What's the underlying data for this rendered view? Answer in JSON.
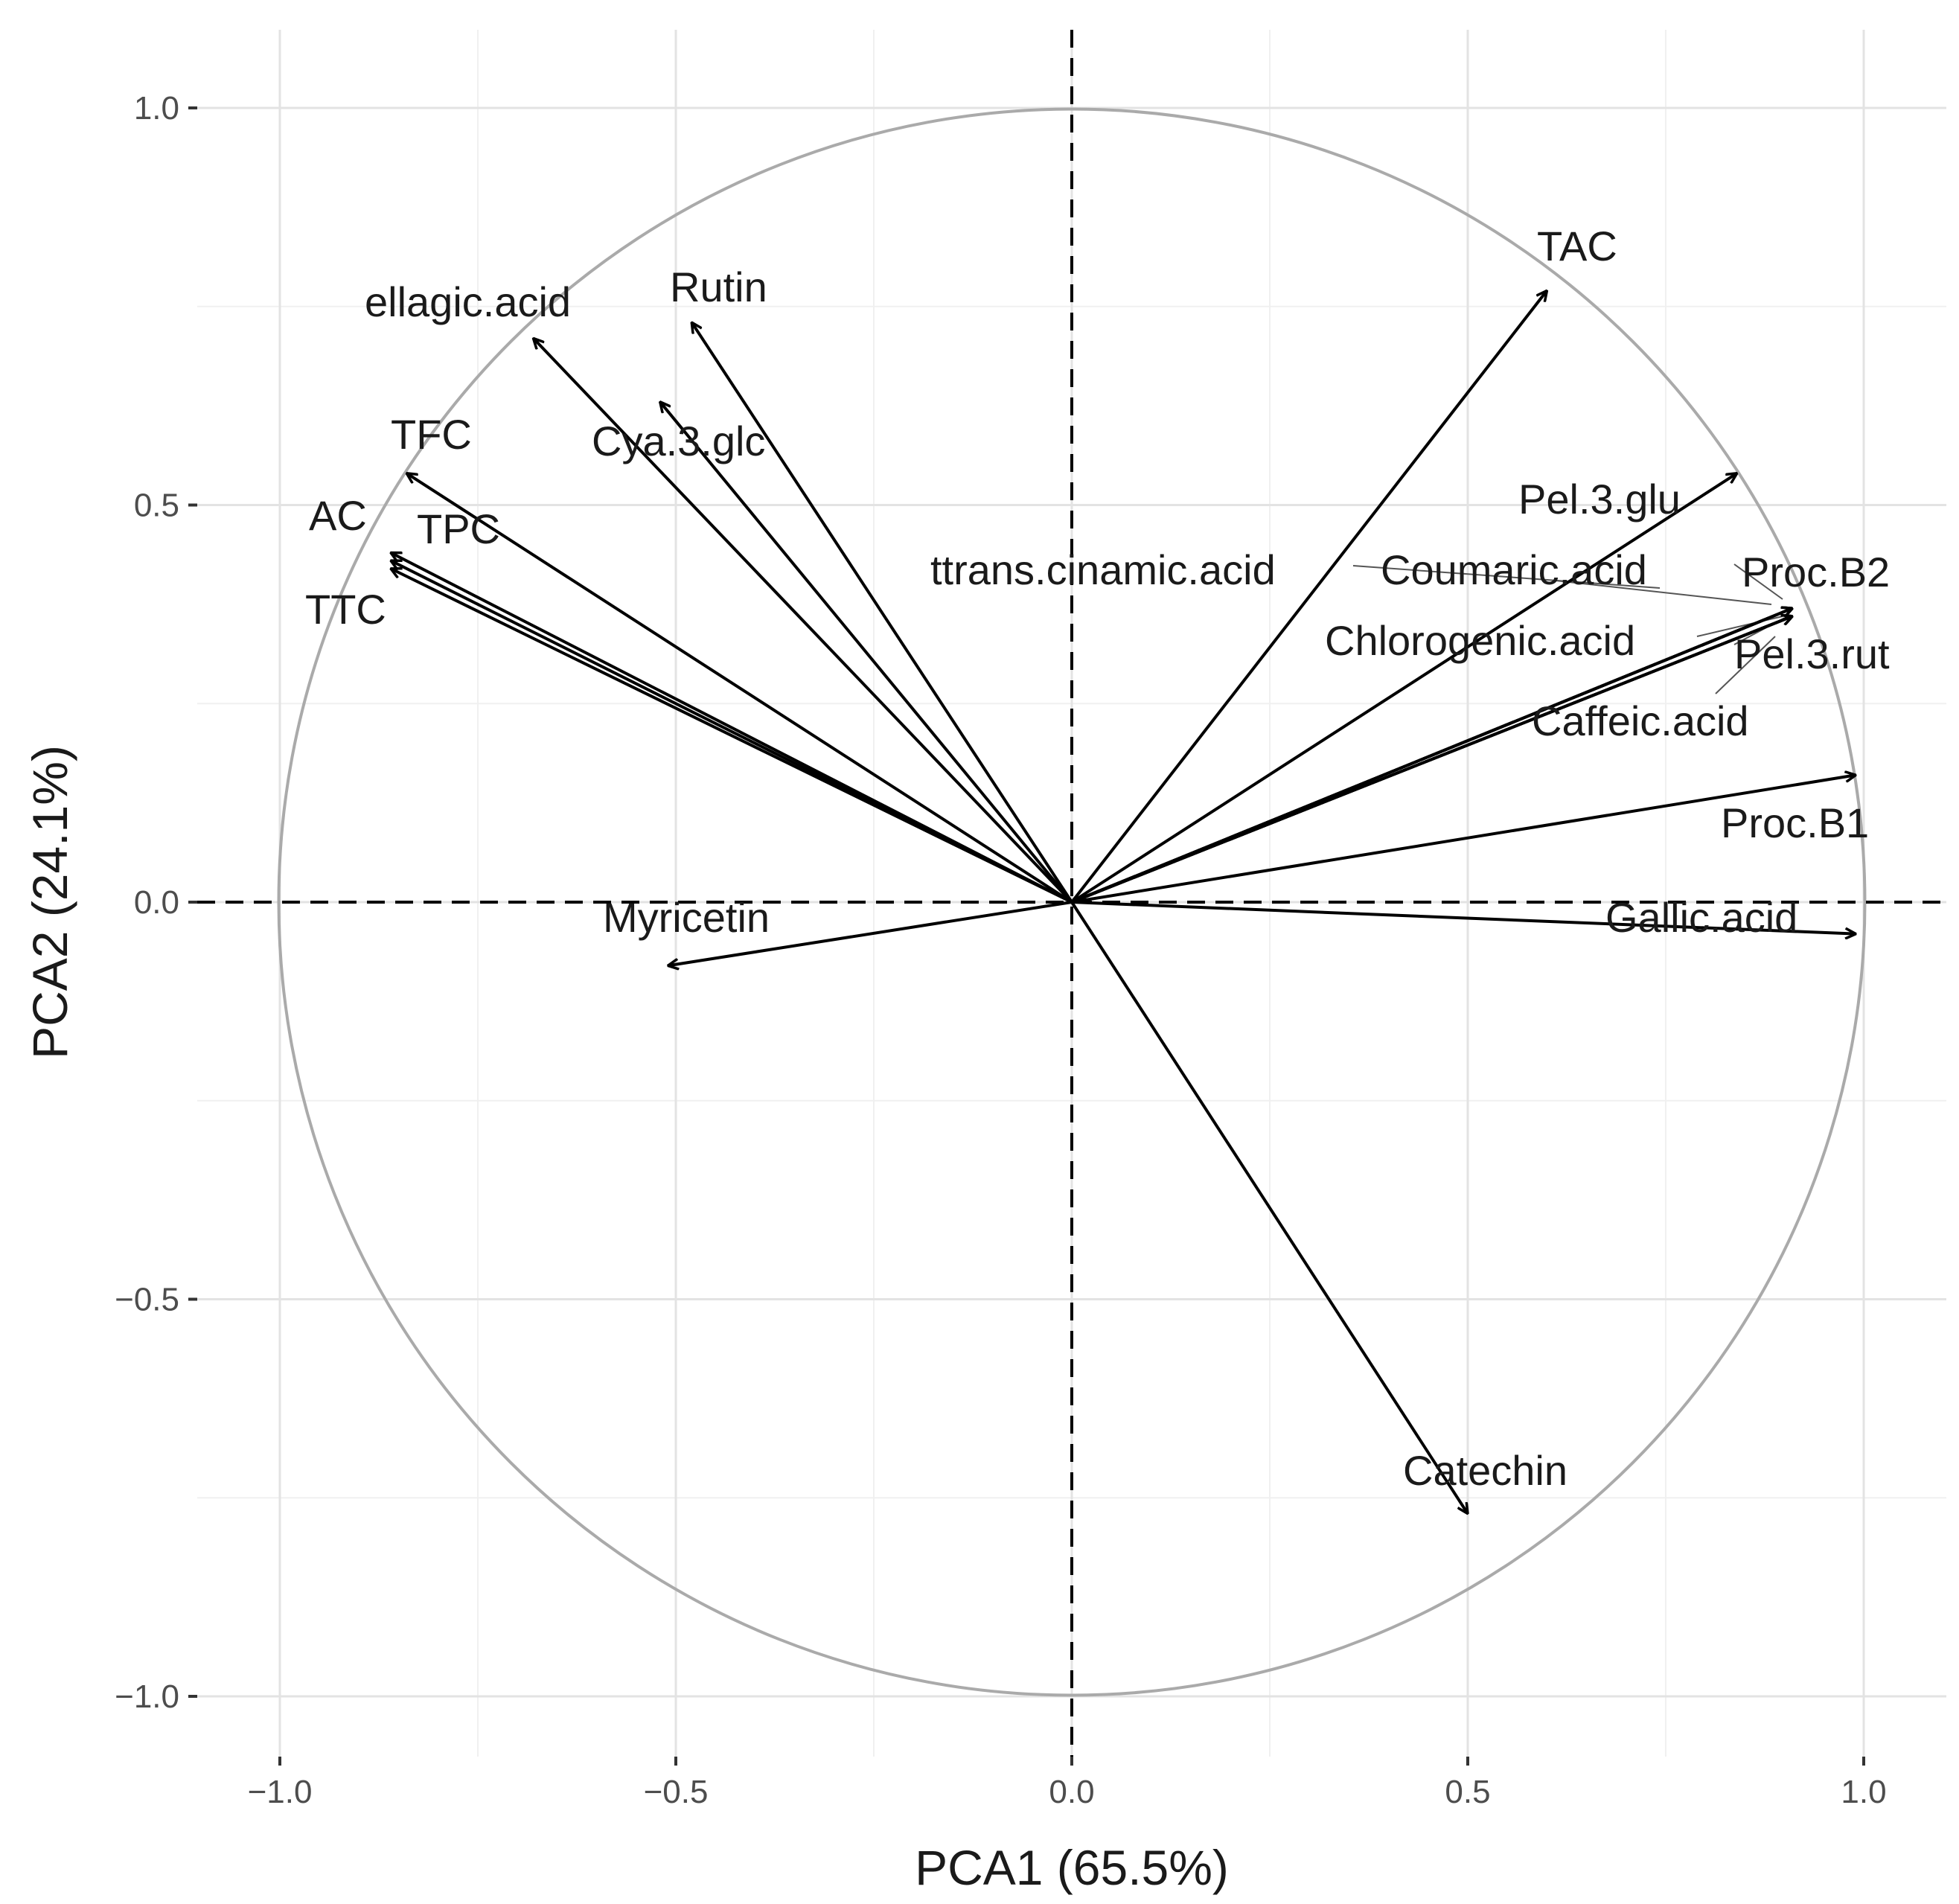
{
  "chart_data": {
    "type": "correlation-circle",
    "xlabel": "PCA1 (65.5%)",
    "ylabel": "PCA2 (24.1%)",
    "xlim": [
      -1.0,
      1.0
    ],
    "ylim": [
      -1.0,
      1.0
    ],
    "x_ticks": [
      {
        "value": -1.0,
        "label": "−1.0"
      },
      {
        "value": -0.5,
        "label": "−0.5"
      },
      {
        "value": 0.0,
        "label": "0.0"
      },
      {
        "value": 0.5,
        "label": "0.5"
      },
      {
        "value": 1.0,
        "label": "1.0"
      }
    ],
    "y_ticks": [
      {
        "value": 1.0,
        "label": "1.0"
      },
      {
        "value": 0.5,
        "label": "0.5"
      },
      {
        "value": 0.0,
        "label": "0.0"
      },
      {
        "value": -0.5,
        "label": "−0.5"
      },
      {
        "value": -1.0,
        "label": "−1.0"
      }
    ],
    "grid": true,
    "unit_circle": true,
    "reference_lines": "dashed lines at x = 0 and y = 0",
    "variables": [
      {
        "name": "TAC",
        "x": 0.6,
        "y": 0.77,
        "label": "TAC"
      },
      {
        "name": "Rutin",
        "x": -0.48,
        "y": 0.73,
        "label": "Rutin"
      },
      {
        "name": "ellagic.acid",
        "x": -0.68,
        "y": 0.71,
        "label": "ellagic.acid"
      },
      {
        "name": "Cya.3.glc",
        "x": -0.52,
        "y": 0.63,
        "label": "Cya.3.glc"
      },
      {
        "name": "TFC",
        "x": -0.84,
        "y": 0.54,
        "label": "TFC"
      },
      {
        "name": "AC",
        "x": -0.86,
        "y": 0.44,
        "label": "AC"
      },
      {
        "name": "TPC",
        "x": -0.86,
        "y": 0.43,
        "label": "TPC"
      },
      {
        "name": "TTC",
        "x": -0.86,
        "y": 0.42,
        "label": "TTC"
      },
      {
        "name": "Pel.3.glu",
        "x": 0.84,
        "y": 0.54,
        "label": "Pel.3.glu"
      },
      {
        "name": "ttrans.cinamic.acid",
        "x": 0.91,
        "y": 0.37,
        "label": "ttrans.cinamic.acid"
      },
      {
        "name": "Coumaric.acid",
        "x": 0.91,
        "y": 0.37,
        "label": "Coumaric.acid"
      },
      {
        "name": "Proc.B2",
        "x": 0.91,
        "y": 0.37,
        "label": "Proc.B2"
      },
      {
        "name": "Chlorogenic.acid",
        "x": 0.91,
        "y": 0.36,
        "label": "Chlorogenic.acid"
      },
      {
        "name": "Pel.3.rut",
        "x": 0.91,
        "y": 0.36,
        "label": "Pel.3.rut"
      },
      {
        "name": "Caffeic.acid",
        "x": 0.91,
        "y": 0.36,
        "label": "Caffeic.acid"
      },
      {
        "name": "Proc.B1",
        "x": 0.99,
        "y": 0.16,
        "label": "Proc.B1"
      },
      {
        "name": "Gallic.acid",
        "x": 0.99,
        "y": -0.04,
        "label": "Gallic.acid"
      },
      {
        "name": "Myricetin",
        "x": -0.51,
        "y": -0.08,
        "label": "Myricetin"
      },
      {
        "name": "Catechin",
        "x": 0.5,
        "y": -0.77,
        "label": "Catechin"
      }
    ]
  }
}
